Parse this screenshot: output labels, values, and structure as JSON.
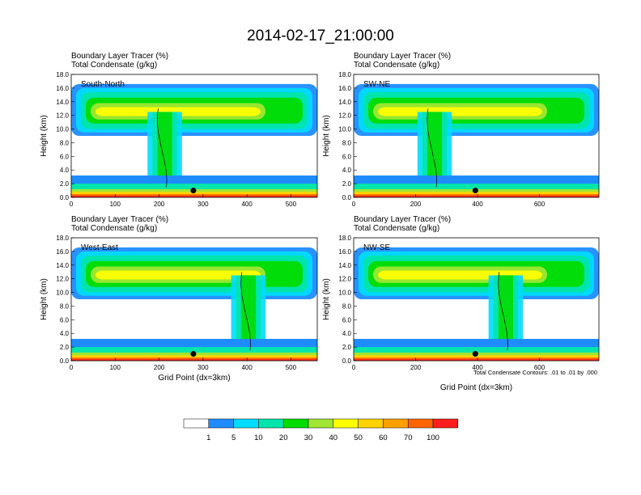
{
  "title": "2014-02-17_21:00:00",
  "colorbar": {
    "colors": [
      "#ffffff",
      "#1e8cff",
      "#00dcff",
      "#00e6aa",
      "#00dc00",
      "#a0e632",
      "#ffff00",
      "#ffd200",
      "#ffa000",
      "#ff6400",
      "#ff1e1e"
    ],
    "labels": [
      "1",
      "5",
      "10",
      "20",
      "30",
      "40",
      "50",
      "60",
      "70",
      "100"
    ]
  },
  "contour_note": "Total Condensate Contours: .01 to .01 by .000",
  "chart_data": [
    {
      "type": "heatmap",
      "panel_label": "South-North",
      "line1": "Boundary Layer Tracer    (%)",
      "line2": "Total Condensate    (g/kg)",
      "ylabel": "Height (km)",
      "xlabel": "",
      "xlim": [
        0,
        560
      ],
      "ylim": [
        0,
        18
      ],
      "xticks": [
        0,
        100,
        200,
        300,
        400,
        500
      ],
      "yticks": [
        "0.0",
        "2.0",
        "4.0",
        "6.0",
        "8.0",
        "10.0",
        "12.0",
        "14.0",
        "16.0",
        "18.0"
      ],
      "marker": {
        "x": 278,
        "y": 1.0
      }
    },
    {
      "type": "heatmap",
      "panel_label": "SW-NE",
      "line1": "Boundary Layer Tracer    (%)",
      "line2": "Total Condensate    (g/kg)",
      "ylabel": "Height (km)",
      "xlabel": "",
      "xlim": [
        0,
        792
      ],
      "ylim": [
        0,
        18
      ],
      "xticks": [
        0,
        200,
        400,
        600
      ],
      "yticks": [
        "0.0",
        "2.0",
        "4.0",
        "6.0",
        "8.0",
        "10.0",
        "12.0",
        "14.0",
        "16.0",
        "18.0"
      ],
      "marker": {
        "x": 393,
        "y": 1.0
      }
    },
    {
      "type": "heatmap",
      "panel_label": "West-East",
      "line1": "Boundary Layer Tracer    (%)",
      "line2": "Total Condensate    (g/kg)",
      "ylabel": "Height (km)",
      "xlabel": "Grid Point (dx=3km)",
      "xlim": [
        0,
        560
      ],
      "ylim": [
        0,
        18
      ],
      "xticks": [
        0,
        100,
        200,
        300,
        400,
        500
      ],
      "yticks": [
        "0.0",
        "2.0",
        "4.0",
        "6.0",
        "8.0",
        "10.0",
        "12.0",
        "14.0",
        "16.0",
        "18.0"
      ],
      "marker": {
        "x": 278,
        "y": 1.0
      }
    },
    {
      "type": "heatmap",
      "panel_label": "NW-SE",
      "line1": "Boundary Layer Tracer    (%)",
      "line2": "Total Condensate    (g/kg)",
      "ylabel": "Height (km)",
      "xlabel": "Grid Point (dx=3km)",
      "xlim": [
        0,
        792
      ],
      "ylim": [
        0,
        18
      ],
      "xticks": [
        0,
        200,
        400,
        600
      ],
      "yticks": [
        "0.0",
        "2.0",
        "4.0",
        "6.0",
        "8.0",
        "10.0",
        "12.0",
        "14.0",
        "16.0",
        "18.0"
      ],
      "marker": {
        "x": 393,
        "y": 1.0
      }
    }
  ]
}
